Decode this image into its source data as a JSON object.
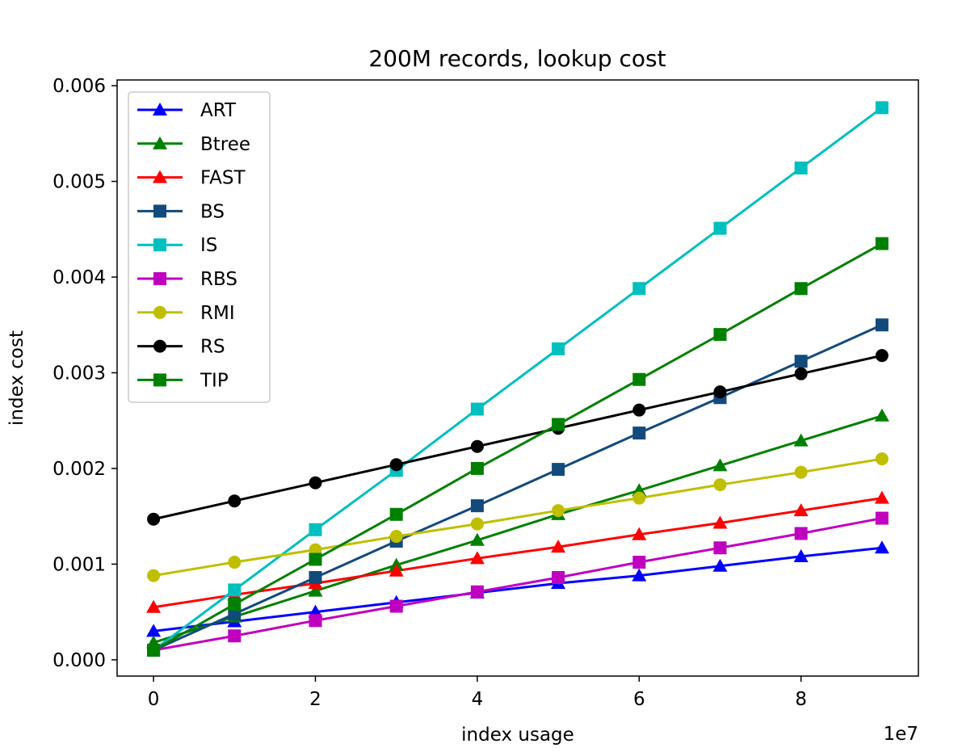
{
  "chart_data": {
    "type": "line",
    "title": "200M records, lookup cost",
    "xlabel": "index usage",
    "ylabel": "index cost",
    "x_offset_label": "1e7",
    "xlim": [
      -0.45,
      9.45
    ],
    "ylim": [
      -0.00017,
      0.00606
    ],
    "x_ticks": [
      0,
      2,
      4,
      6,
      8
    ],
    "x_tick_labels": [
      "0",
      "2",
      "4",
      "6",
      "8"
    ],
    "y_ticks": [
      0,
      0.001,
      0.002,
      0.003,
      0.004,
      0.005,
      0.006
    ],
    "y_tick_labels": [
      "0.000",
      "0.001",
      "0.002",
      "0.003",
      "0.004",
      "0.005",
      "0.006"
    ],
    "grid": false,
    "legend_position": "upper-left",
    "x": [
      0,
      1,
      2,
      3,
      4,
      5,
      6,
      7,
      8,
      9
    ],
    "series": [
      {
        "name": "ART",
        "color": "#0000ff",
        "marker": "triangle",
        "values": [
          0.0003,
          0.0004,
          0.0005,
          0.0006,
          0.0007,
          0.0008,
          0.00088,
          0.00098,
          0.00108,
          0.00117
        ]
      },
      {
        "name": "Btree",
        "color": "#008000",
        "marker": "triangle",
        "values": [
          0.00018,
          0.00045,
          0.00072,
          0.00099,
          0.00125,
          0.00152,
          0.00177,
          0.00203,
          0.00229,
          0.00255
        ]
      },
      {
        "name": "FAST",
        "color": "#ff0000",
        "marker": "triangle",
        "values": [
          0.00055,
          0.00068,
          0.0008,
          0.00093,
          0.00106,
          0.00118,
          0.00131,
          0.00143,
          0.00156,
          0.00169
        ]
      },
      {
        "name": "BS",
        "color": "#134a7c",
        "marker": "square",
        "values": [
          0.0001,
          0.00048,
          0.00086,
          0.00124,
          0.00161,
          0.00199,
          0.00237,
          0.00274,
          0.00312,
          0.0035
        ]
      },
      {
        "name": "IS",
        "color": "#00bfbf",
        "marker": "square",
        "values": [
          0.0001,
          0.00073,
          0.00136,
          0.00198,
          0.00262,
          0.00325,
          0.00388,
          0.00451,
          0.00514,
          0.00577
        ]
      },
      {
        "name": "RBS",
        "color": "#bf00bf",
        "marker": "square",
        "values": [
          0.0001,
          0.00025,
          0.00041,
          0.00056,
          0.00071,
          0.00086,
          0.00102,
          0.00117,
          0.00132,
          0.00148
        ]
      },
      {
        "name": "RMI",
        "color": "#bfbf00",
        "marker": "circle",
        "values": [
          0.00088,
          0.00102,
          0.00115,
          0.00129,
          0.00142,
          0.00156,
          0.00169,
          0.00183,
          0.00196,
          0.0021
        ]
      },
      {
        "name": "RS",
        "color": "#000000",
        "marker": "circle",
        "values": [
          0.00147,
          0.00166,
          0.00185,
          0.00204,
          0.00223,
          0.00242,
          0.00261,
          0.0028,
          0.00299,
          0.00318
        ]
      },
      {
        "name": "TIP",
        "color": "#008000",
        "marker": "square",
        "values": [
          0.0001,
          0.00058,
          0.00105,
          0.00152,
          0.002,
          0.00246,
          0.00293,
          0.0034,
          0.00388,
          0.00435
        ]
      }
    ]
  }
}
